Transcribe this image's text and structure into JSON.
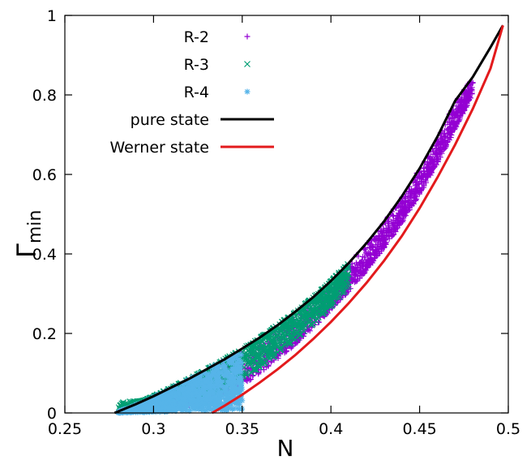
{
  "chart_data": {
    "type": "scatter",
    "xlabel": "N",
    "ylabel_main": "Γ",
    "ylabel_sub": "min",
    "xlim": [
      0.25,
      0.5
    ],
    "ylim": [
      0,
      1
    ],
    "xticks": [
      "0.25",
      "0.3",
      "0.35",
      "0.4",
      "0.45",
      "0.5"
    ],
    "yticks": [
      "0",
      "0.2",
      "0.4",
      "0.6",
      "0.8",
      "1"
    ],
    "grid": false,
    "legend_position": "top-center",
    "series": [
      {
        "name": "R-2",
        "kind": "points",
        "marker": "+",
        "color": "#9400d3",
        "x_range": [
          0.28,
          0.48
        ]
      },
      {
        "name": "R-3",
        "kind": "points",
        "marker": "x",
        "color": "#009e73",
        "x_range": [
          0.28,
          0.41
        ]
      },
      {
        "name": "R-4",
        "kind": "points",
        "marker": "*",
        "color": "#56b4e9",
        "x_range": [
          0.28,
          0.35
        ]
      },
      {
        "name": "pure state",
        "kind": "line",
        "color": "#000000",
        "points": [
          [
            0.278,
            0
          ],
          [
            0.29,
            0.022
          ],
          [
            0.3,
            0.042
          ],
          [
            0.31,
            0.064
          ],
          [
            0.32,
            0.086
          ],
          [
            0.33,
            0.11
          ],
          [
            0.34,
            0.135
          ],
          [
            0.35,
            0.162
          ],
          [
            0.36,
            0.19
          ],
          [
            0.37,
            0.221
          ],
          [
            0.38,
            0.255
          ],
          [
            0.39,
            0.291
          ],
          [
            0.4,
            0.332
          ],
          [
            0.41,
            0.377
          ],
          [
            0.42,
            0.427
          ],
          [
            0.43,
            0.482
          ],
          [
            0.44,
            0.545
          ],
          [
            0.45,
            0.615
          ],
          [
            0.46,
            0.695
          ],
          [
            0.47,
            0.785
          ],
          [
            0.48,
            0.845
          ],
          [
            0.49,
            0.92
          ],
          [
            0.497,
            0.975
          ]
        ]
      },
      {
        "name": "Werner state",
        "kind": "line",
        "color": "#e31a1c",
        "points": [
          [
            0.333,
            0
          ],
          [
            0.34,
            0.018
          ],
          [
            0.35,
            0.046
          ],
          [
            0.36,
            0.077
          ],
          [
            0.37,
            0.11
          ],
          [
            0.38,
            0.146
          ],
          [
            0.39,
            0.186
          ],
          [
            0.4,
            0.229
          ],
          [
            0.41,
            0.276
          ],
          [
            0.42,
            0.327
          ],
          [
            0.43,
            0.383
          ],
          [
            0.44,
            0.445
          ],
          [
            0.45,
            0.515
          ],
          [
            0.46,
            0.592
          ],
          [
            0.47,
            0.675
          ],
          [
            0.48,
            0.765
          ],
          [
            0.49,
            0.867
          ],
          [
            0.497,
            0.975
          ]
        ]
      }
    ]
  }
}
